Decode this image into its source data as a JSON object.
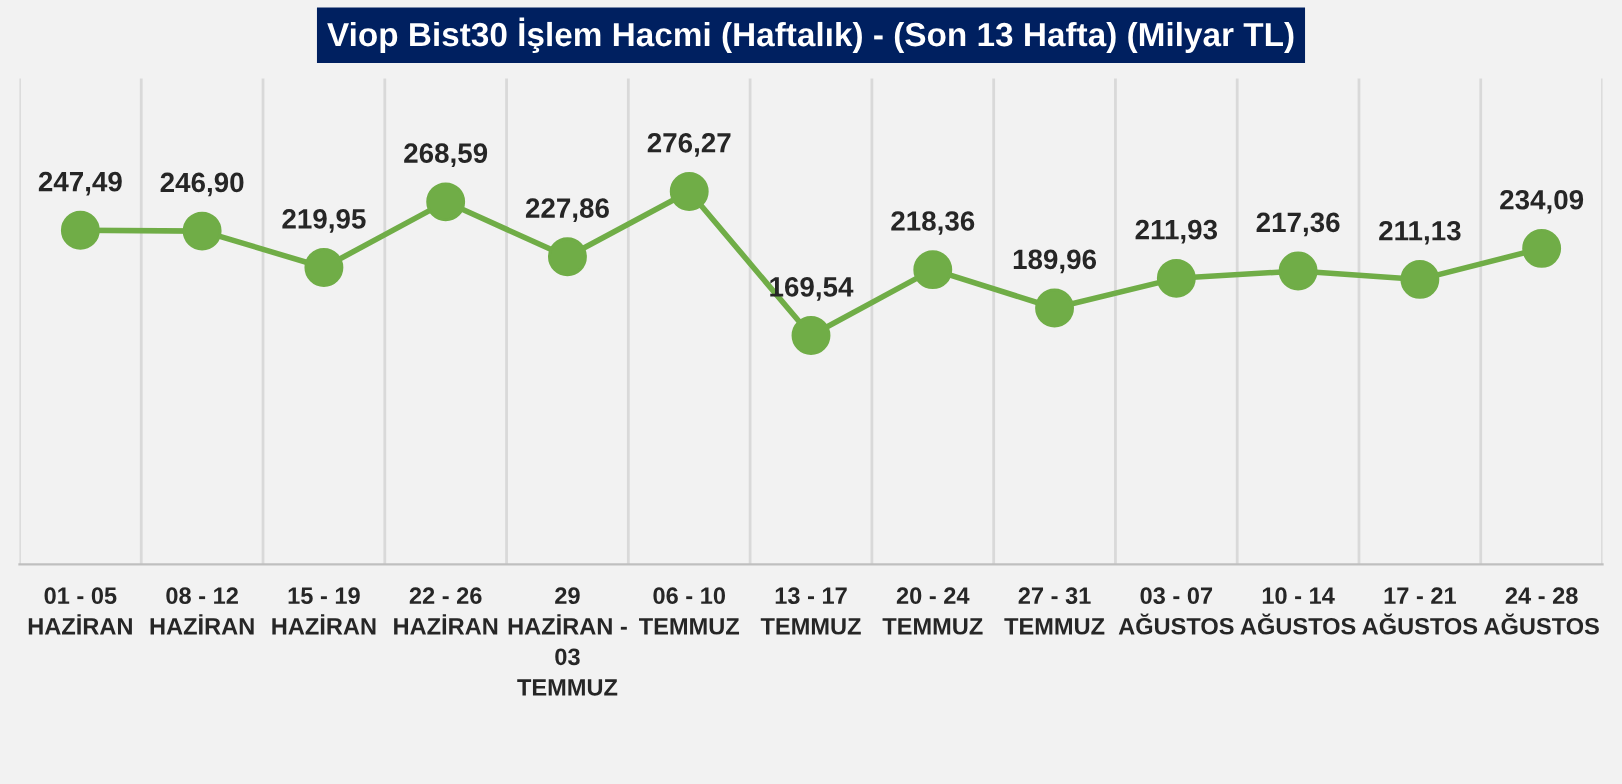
{
  "chart_data": {
    "type": "line",
    "title": "Viop Bist30 İşlem Hacmi (Haftalık) - (Son 13 Hafta) (Milyar TL)",
    "categories": [
      "01 - 05\nHAZİRAN",
      "08 - 12\nHAZİRAN",
      "15 - 19\nHAZİRAN",
      "22 - 26\nHAZİRAN",
      "29\nHAZİRAN -\n03\nTEMMUZ",
      "06 - 10\nTEMMUZ",
      "13 - 17\nTEMMUZ",
      "20 - 24\nTEMMUZ",
      "27 - 31\nTEMMUZ",
      "03 - 07\nAĞUSTOS",
      "10 - 14\nAĞUSTOS",
      "17 - 21\nAĞUSTOS",
      "24 - 28\nAĞUSTOS"
    ],
    "values": [
      247.49,
      246.9,
      219.95,
      268.59,
      227.86,
      276.27,
      169.54,
      218.36,
      189.96,
      211.93,
      217.36,
      211.13,
      234.09
    ],
    "value_labels": [
      "247,49",
      "246,90",
      "219,95",
      "268,59",
      "227,86",
      "276,27",
      "169,54",
      "218,36",
      "189,96",
      "211,93",
      "217,36",
      "211,13",
      "234,09"
    ],
    "color": "#70ad47",
    "marker": "circle",
    "line_style": "solid",
    "ylim": [
      0,
      360
    ],
    "grid": "x",
    "legend": false,
    "tick_labels": "x"
  }
}
